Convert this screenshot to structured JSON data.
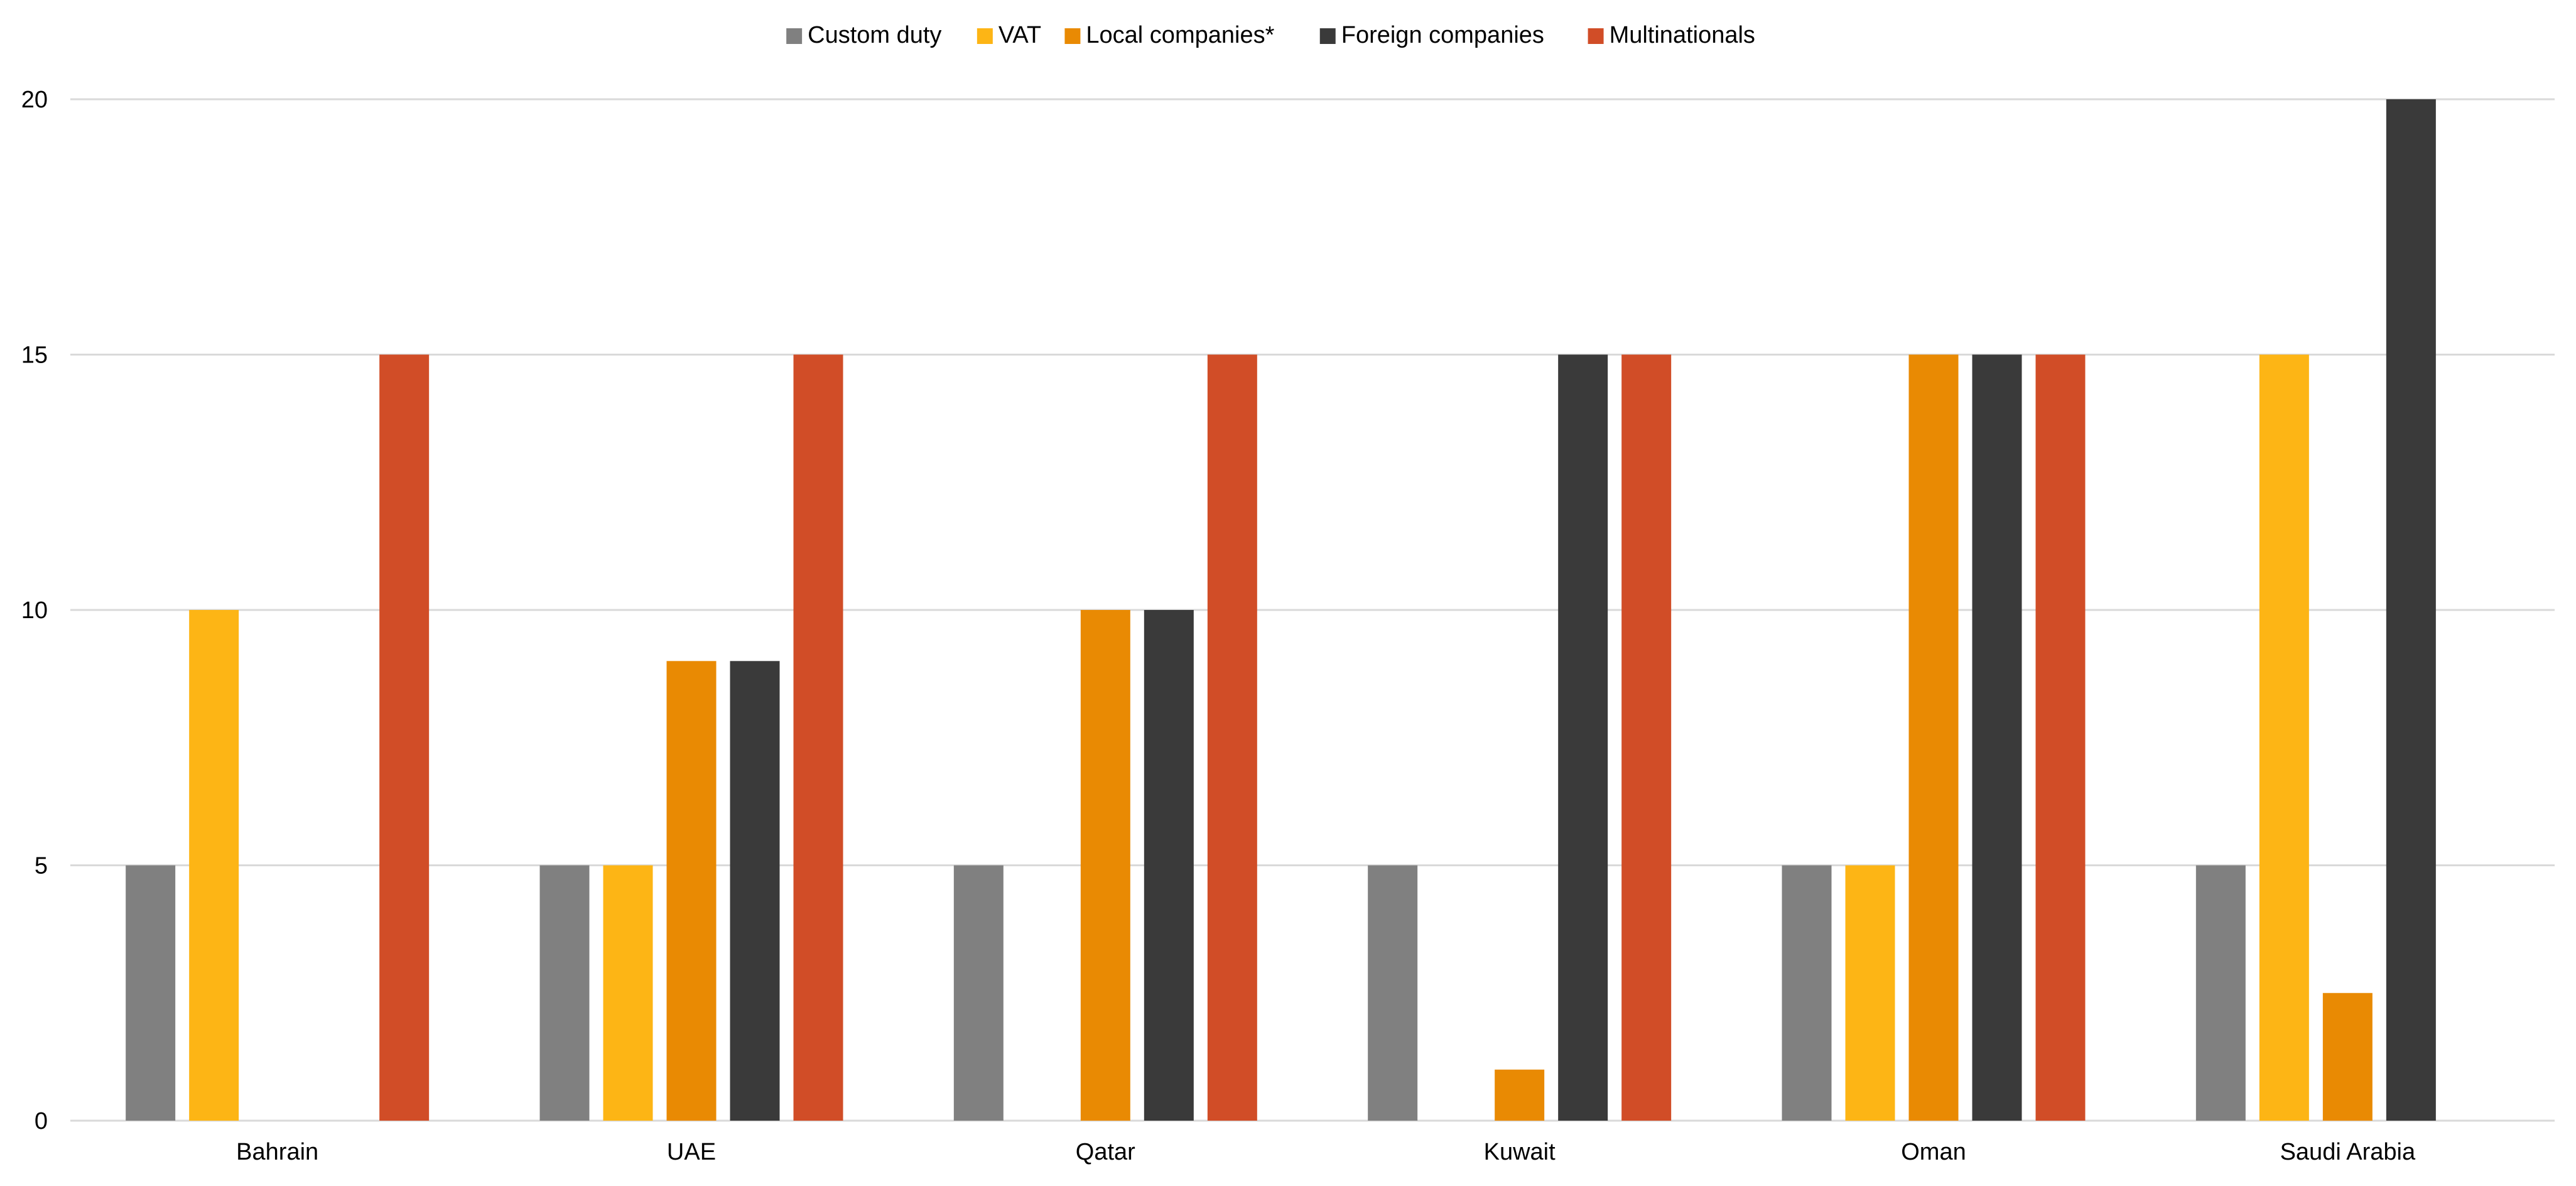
{
  "chart_data": {
    "type": "bar",
    "title": "",
    "xlabel": "",
    "ylabel": "",
    "categories": [
      "Bahrain",
      "UAE",
      "Qatar",
      "Kuwait",
      "Oman",
      "Saudi Arabia"
    ],
    "series": [
      {
        "name": "Custom duty",
        "color": "#808080",
        "values": [
          5,
          5,
          5,
          5,
          5,
          5
        ]
      },
      {
        "name": "VAT",
        "color": "#FDB515",
        "values": [
          10,
          5,
          null,
          null,
          5,
          15
        ]
      },
      {
        "name": "Local companies*",
        "color": "#E98A03",
        "values": [
          null,
          9,
          10,
          1,
          15,
          2.5
        ]
      },
      {
        "name": "Foreign companies",
        "color": "#3A3A3A",
        "values": [
          null,
          9,
          10,
          15,
          15,
          20
        ]
      },
      {
        "name": "Multinationals",
        "color": "#D14D27",
        "values": [
          15,
          15,
          15,
          15,
          15,
          null
        ]
      }
    ],
    "ylim": [
      0,
      20
    ],
    "yticks": [
      0,
      5,
      10,
      15,
      20
    ],
    "grid": true,
    "legend_position": "top-center",
    "gridline_color": "#D9D9D9",
    "text_color": "#000000"
  }
}
